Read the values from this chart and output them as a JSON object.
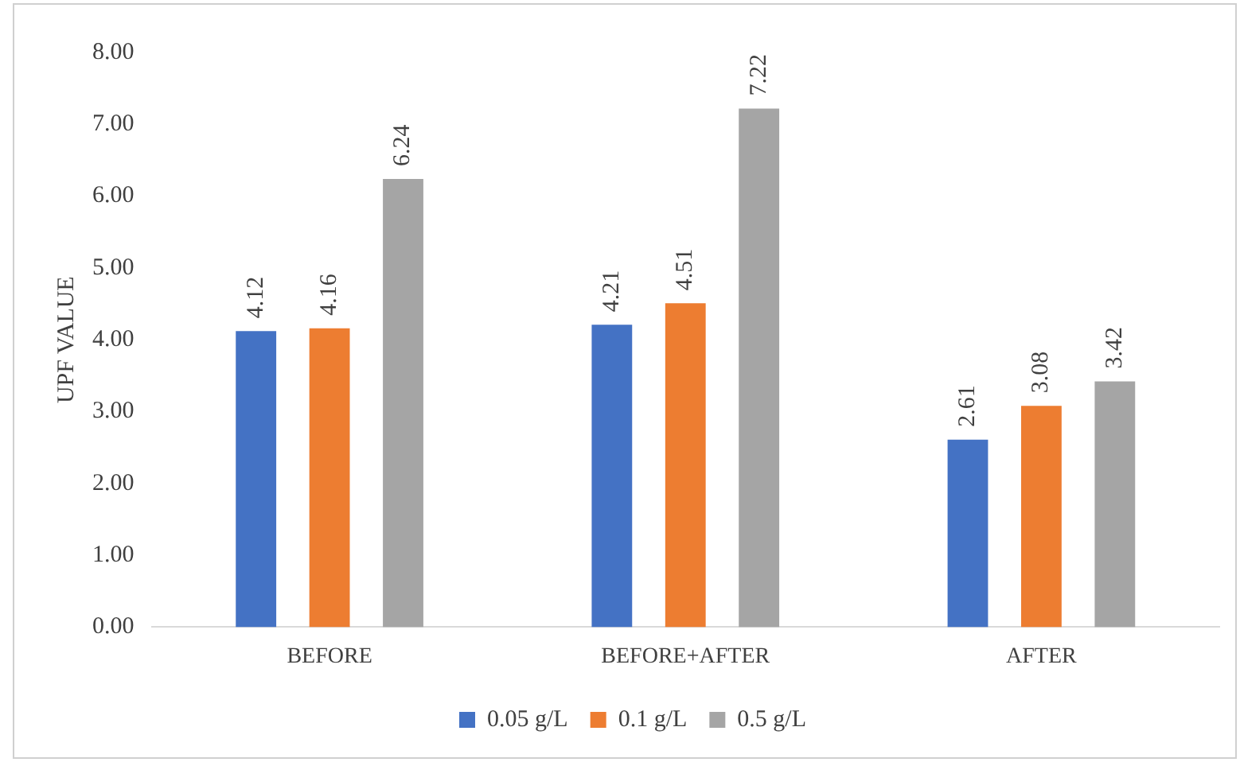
{
  "chart_data": {
    "type": "bar",
    "ylabel": "UPF VALUE",
    "categories": [
      "BEFORE",
      "BEFORE+AFTER",
      "AFTER"
    ],
    "series": [
      {
        "name": "0.05 g/L",
        "color": "#4472c4",
        "values": [
          4.12,
          4.21,
          2.61
        ]
      },
      {
        "name": "0.1 g/L",
        "color": "#ed7d31",
        "values": [
          4.16,
          4.51,
          3.08
        ]
      },
      {
        "name": "0.5 g/L",
        "color": "#a5a5a5",
        "values": [
          6.24,
          7.22,
          3.42
        ]
      }
    ],
    "ylim": [
      0,
      8
    ],
    "yticks": [
      {
        "value": 0,
        "label": "0.00"
      },
      {
        "value": 1,
        "label": "1.00"
      },
      {
        "value": 2,
        "label": "2.00"
      },
      {
        "value": 3,
        "label": "3.00"
      },
      {
        "value": 4,
        "label": "4.00"
      },
      {
        "value": 5,
        "label": "5.00"
      },
      {
        "value": 6,
        "label": "6.00"
      },
      {
        "value": 7,
        "label": "7.00"
      },
      {
        "value": 8,
        "label": "8.00"
      }
    ],
    "grid": false,
    "legend": "bottom",
    "data_labels": true
  }
}
